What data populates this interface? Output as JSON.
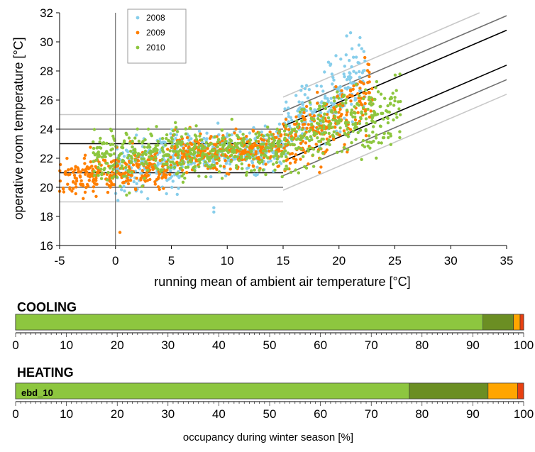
{
  "chart_data": [
    {
      "type": "scatter",
      "xlabel": "running mean of ambient air temperature [°C]",
      "ylabel": "operative room temperature [°C]",
      "xlim": [
        -5,
        35
      ],
      "ylim": [
        16,
        32
      ],
      "xticks": [
        "-5",
        "0",
        "5",
        "10",
        "15",
        "20",
        "25",
        "30",
        "35"
      ],
      "yticks": [
        "16",
        "18",
        "20",
        "22",
        "24",
        "26",
        "28",
        "30",
        "32"
      ],
      "grid": false,
      "legend_placement": "top-left",
      "series": [
        {
          "name": "2008",
          "color": "#87CEEB",
          "clusters": [
            [
              0,
              6,
              21.5,
              1.2
            ],
            [
              5,
              15,
              22.5,
              1.0
            ],
            [
              15,
              20,
              25.0,
              1.8
            ],
            [
              20,
              22.5,
              27.5,
              2.0
            ]
          ]
        },
        {
          "name": "2009",
          "color": "#FF7F00",
          "clusters": [
            [
              -5,
              0,
              20.8,
              1.0
            ],
            [
              0,
              5,
              21.2,
              0.9
            ],
            [
              5,
              15,
              22.5,
              0.9
            ],
            [
              15,
              21,
              24.0,
              1.6
            ],
            [
              21,
              23,
              26.5,
              2.0
            ]
          ]
        },
        {
          "name": "2010",
          "color": "#8DC63F",
          "clusters": [
            [
              -2,
              3,
              22.0,
              1.3
            ],
            [
              3,
              15,
              22.5,
              1.1
            ],
            [
              15,
              22,
              24.0,
              1.6
            ],
            [
              22,
              25.5,
              25.0,
              1.7
            ]
          ]
        }
      ],
      "comfort_lines": [
        {
          "color": "#c8c8c8",
          "low": 19,
          "high": 25
        },
        {
          "color": "#707070",
          "low": 20,
          "high": 24
        },
        {
          "color": "#000000",
          "low": 21,
          "high": 23
        }
      ],
      "annotations": {
        "outliers": [
          [
            0.4,
            16.9
          ],
          [
            8.8,
            18.6
          ],
          [
            8.8,
            18.3
          ]
        ]
      }
    },
    {
      "type": "bar",
      "title": "COOLING",
      "label": "",
      "xlim": [
        0,
        100
      ],
      "xticks": [
        "0",
        "10",
        "20",
        "30",
        "40",
        "50",
        "60",
        "70",
        "80",
        "90",
        "100"
      ],
      "segments": [
        {
          "value": 92,
          "color": "#8DC63F"
        },
        {
          "value": 6,
          "color": "#6B8E23"
        },
        {
          "value": 1.3,
          "color": "#FFA500"
        },
        {
          "value": 0.7,
          "color": "#E84010"
        }
      ]
    },
    {
      "type": "bar",
      "title": "HEATING",
      "label": "ebd_10",
      "xlabel": "occupancy during winter season [%]",
      "xlim": [
        0,
        100
      ],
      "xticks": [
        "0",
        "10",
        "20",
        "30",
        "40",
        "50",
        "60",
        "70",
        "80",
        "90",
        "100"
      ],
      "segments": [
        {
          "value": 77.5,
          "color": "#8DC63F"
        },
        {
          "value": 15.5,
          "color": "#6B8E23"
        },
        {
          "value": 5.8,
          "color": "#FFA500"
        },
        {
          "value": 1.2,
          "color": "#E84010"
        }
      ]
    }
  ]
}
